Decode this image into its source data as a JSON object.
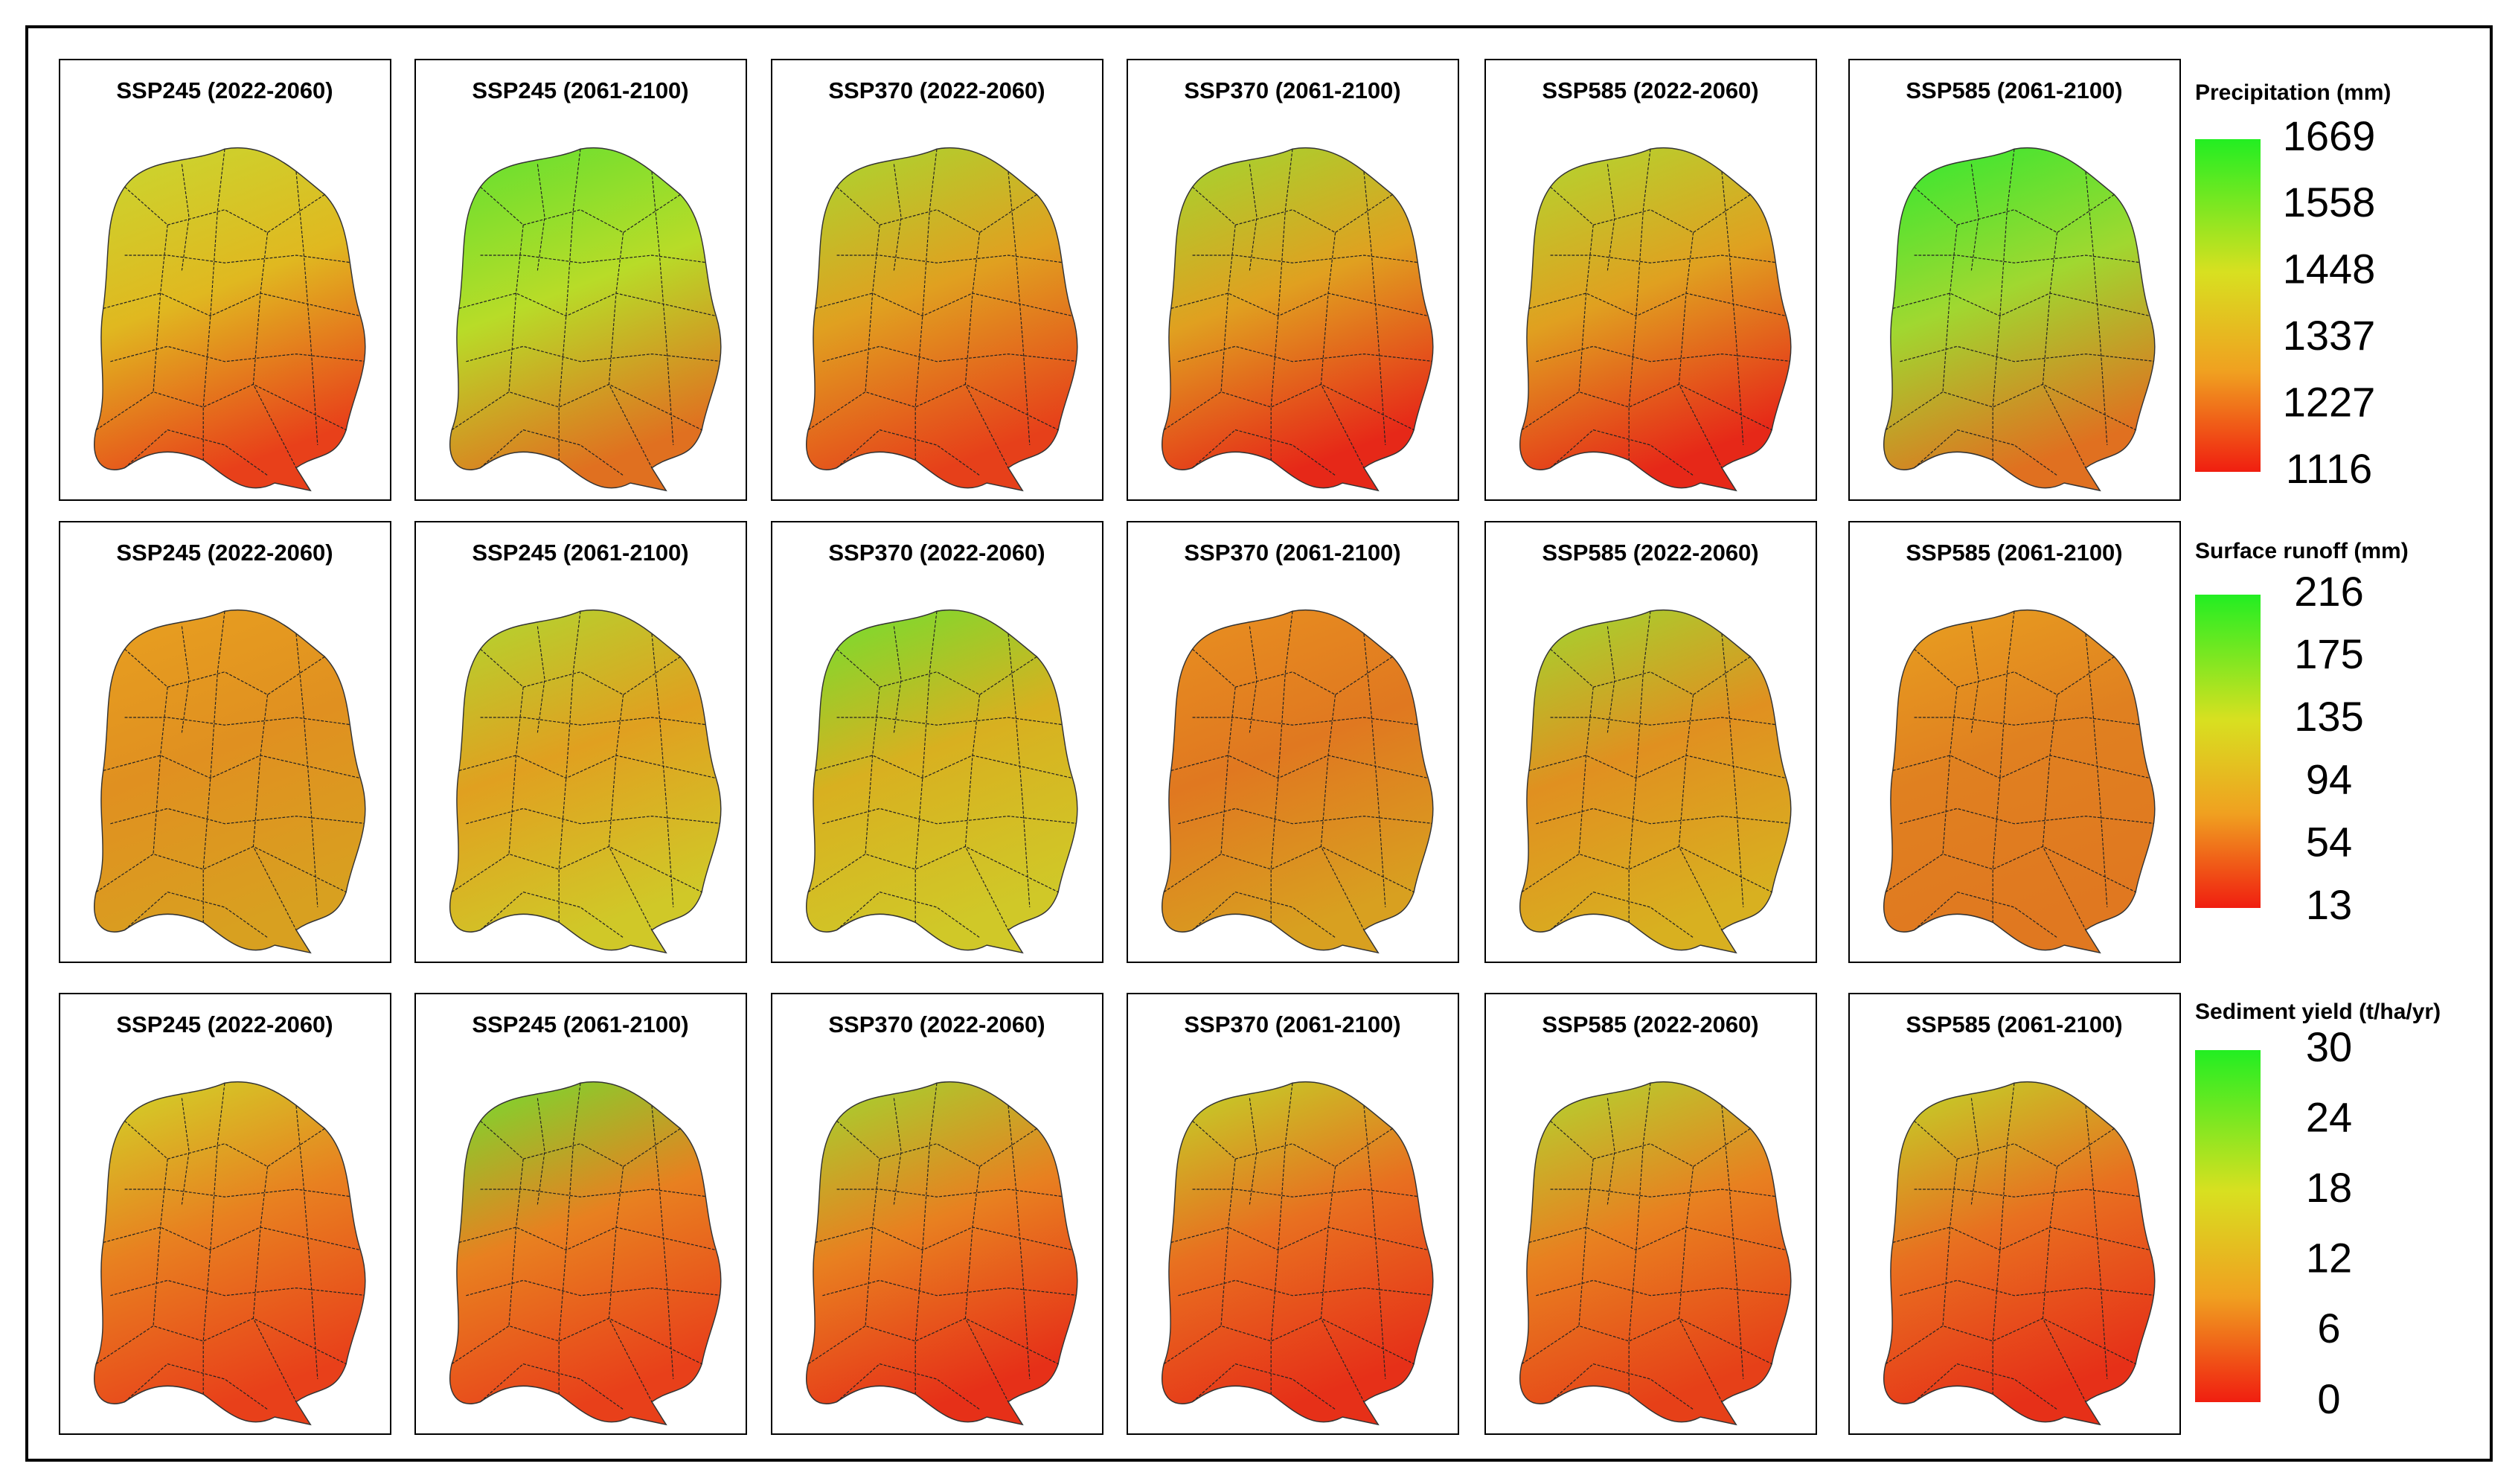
{
  "rows": [
    {
      "panels": [
        {
          "title": "SSP245 (2022-2060)"
        },
        {
          "title": "SSP245 (2061-2100)"
        },
        {
          "title": "SSP370 (2022-2060)"
        },
        {
          "title": "SSP370 (2061-2100)"
        },
        {
          "title": "SSP585 (2022-2060)"
        },
        {
          "title": "SSP585 (2061-2100)"
        }
      ],
      "legend": {
        "title": "Precipitation (mm)",
        "ticks": [
          1669,
          1558,
          1448,
          1337,
          1227,
          1116
        ]
      }
    },
    {
      "panels": [
        {
          "title": "SSP245 (2022-2060)"
        },
        {
          "title": "SSP245 (2061-2100)"
        },
        {
          "title": "SSP370 (2022-2060)"
        },
        {
          "title": "SSP370 (2061-2100)"
        },
        {
          "title": "SSP585 (2022-2060)"
        },
        {
          "title": "SSP585 (2061-2100)"
        }
      ],
      "legend": {
        "title": "Surface runoff (mm)",
        "ticks": [
          216,
          175,
          135,
          94,
          54,
          13
        ]
      }
    },
    {
      "panels": [
        {
          "title": "SSP245 (2022-2060)"
        },
        {
          "title": "SSP245 (2061-2100)"
        },
        {
          "title": "SSP370 (2022-2060)"
        },
        {
          "title": "SSP370 (2061-2100)"
        },
        {
          "title": "SSP585 (2022-2060)"
        },
        {
          "title": "SSP585 (2061-2100)"
        }
      ],
      "legend": {
        "title": "Sediment yield (t/ha/yr)",
        "ticks": [
          30,
          24,
          18,
          12,
          6,
          0
        ]
      }
    }
  ]
}
